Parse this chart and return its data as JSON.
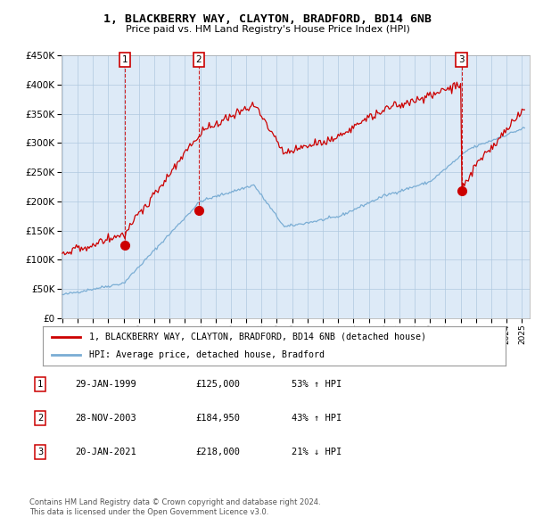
{
  "title1": "1, BLACKBERRY WAY, CLAYTON, BRADFORD, BD14 6NB",
  "title2": "Price paid vs. HM Land Registry's House Price Index (HPI)",
  "sale_prices": [
    125000,
    184950,
    218000
  ],
  "sale_labels": [
    "1",
    "2",
    "3"
  ],
  "sale_color": "#cc0000",
  "hpi_color": "#7aadd4",
  "vline_color": "#cc0000",
  "background_color": "#ffffff",
  "chart_bg": "#ddeaf7",
  "grid_color": "#b0c8e0",
  "ylim": [
    0,
    450000
  ],
  "yticks": [
    0,
    50000,
    100000,
    150000,
    200000,
    250000,
    300000,
    350000,
    400000,
    450000
  ],
  "legend_label_red": "1, BLACKBERRY WAY, CLAYTON, BRADFORD, BD14 6NB (detached house)",
  "legend_label_blue": "HPI: Average price, detached house, Bradford",
  "table_rows": [
    {
      "num": "1",
      "date": "29-JAN-1999",
      "price": "£125,000",
      "pct": "53% ↑ HPI"
    },
    {
      "num": "2",
      "date": "28-NOV-2003",
      "price": "£184,950",
      "pct": "43% ↑ HPI"
    },
    {
      "num": "3",
      "date": "20-JAN-2021",
      "price": "£218,000",
      "pct": "21% ↓ HPI"
    }
  ],
  "footnote1": "Contains HM Land Registry data © Crown copyright and database right 2024.",
  "footnote2": "This data is licensed under the Open Government Licence v3.0.",
  "sale_year_floats": [
    1999.08,
    2003.91,
    2021.05
  ]
}
